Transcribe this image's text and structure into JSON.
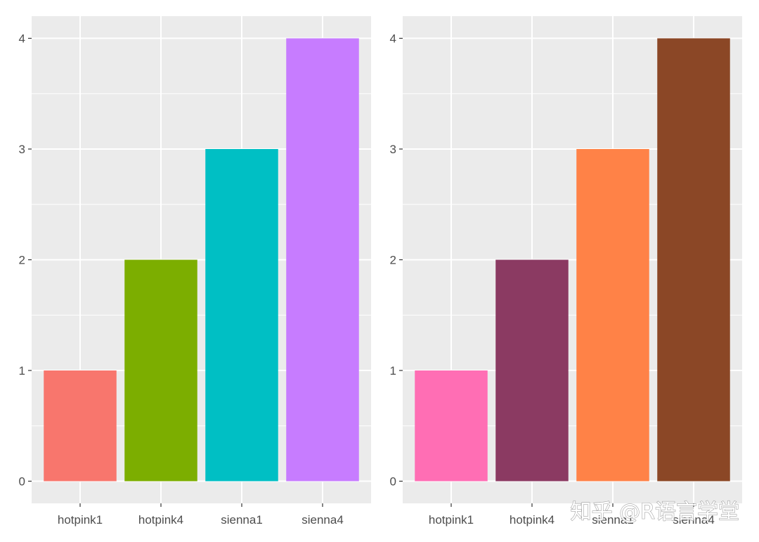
{
  "chart_data": [
    {
      "type": "bar",
      "categories": [
        "hotpink1",
        "hotpink4",
        "sienna1",
        "sienna4"
      ],
      "values": [
        1,
        2,
        3,
        4
      ],
      "colors": [
        "#F8766D",
        "#7CAE00",
        "#00BFC4",
        "#C77CFF"
      ],
      "title": "",
      "xlabel": "",
      "ylabel": "",
      "ylim": [
        -0.2,
        4.2
      ],
      "yticks": [
        0,
        1,
        2,
        3,
        4
      ],
      "grid": true,
      "legend": "none"
    },
    {
      "type": "bar",
      "categories": [
        "hotpink1",
        "hotpink4",
        "sienna1",
        "sienna4"
      ],
      "values": [
        1,
        2,
        3,
        4
      ],
      "colors": [
        "#FF6EB4",
        "#8B3A62",
        "#FF8247",
        "#8B4726"
      ],
      "title": "",
      "xlabel": "",
      "ylabel": "",
      "ylim": [
        -0.2,
        4.2
      ],
      "yticks": [
        0,
        1,
        2,
        3,
        4
      ],
      "grid": true,
      "legend": "none"
    }
  ],
  "theme": {
    "panel_background": "#EBEBEB",
    "grid_color": "#FFFFFF",
    "text_color": "#4D4D4D",
    "tick_color": "#333333"
  },
  "watermark": {
    "text": "知乎 @R语言学堂"
  }
}
